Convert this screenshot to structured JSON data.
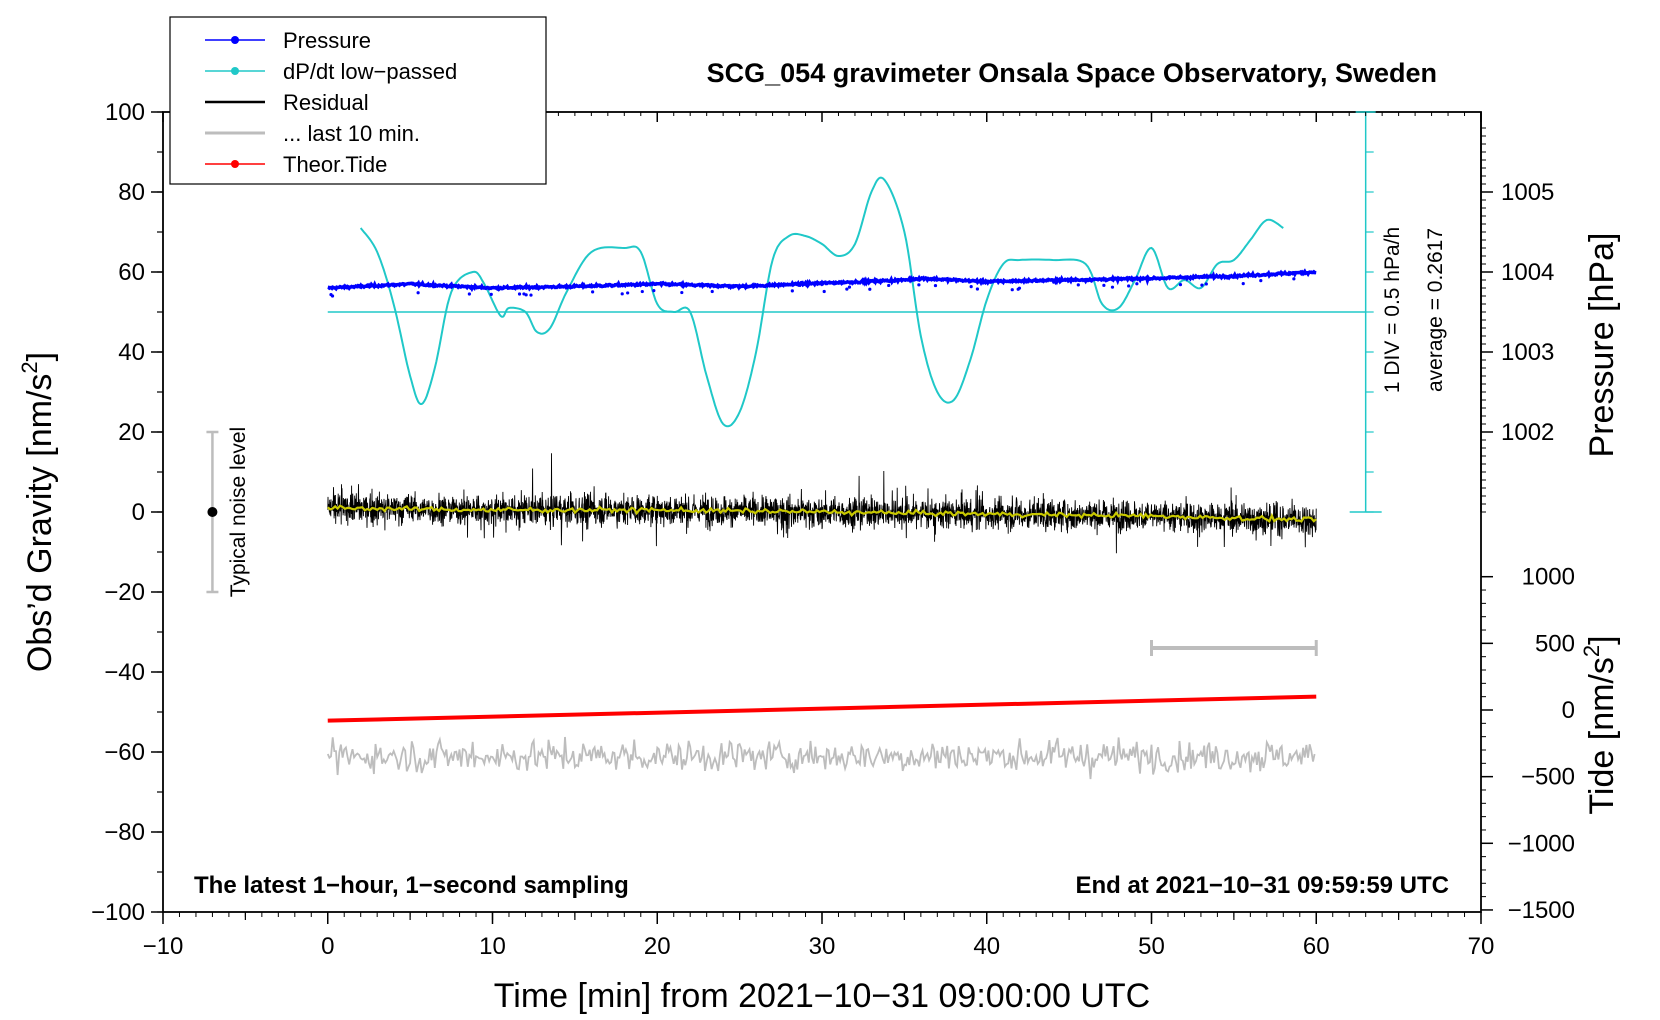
{
  "chart_data": {
    "type": "line",
    "title": "SCG_054 gravimeter Onsala Space Observatory, Sweden",
    "xlabel": "Time [min] from 2021−10−31 09:00:00 UTC",
    "ylabel_left": "Obs’d Gravity [nm/s",
    "ylabel_right_pressure": "Pressure [hPa]",
    "ylabel_right_tide": "Tide [nm/s",
    "ylabel_sup": "2",
    "ylabel_close": "]",
    "xlim": [
      -10,
      70
    ],
    "ylim": [
      -100,
      100
    ],
    "xticks": [
      "−10",
      "0",
      "10",
      "20",
      "30",
      "40",
      "50",
      "60",
      "70"
    ],
    "yticks_left": [
      "100",
      "80",
      "60",
      "40",
      "20",
      "0",
      "−20",
      "−40",
      "−60",
      "−80",
      "−100"
    ],
    "yticks_pressure": [
      "1005",
      "1004",
      "1003",
      "1002"
    ],
    "yticks_tide": [
      "1000",
      "500",
      "0",
      "−500",
      "−1000",
      "−1500"
    ],
    "legend": {
      "position": "top-left",
      "entries": [
        {
          "label": "Pressure",
          "color": "#0000ff"
        },
        {
          "label": "dP/dt low−passed",
          "color": "#20c8c8"
        },
        {
          "label": "Residual",
          "color": "#000000"
        },
        {
          "label": "... last 10 min.",
          "color": "#bdbdbd"
        },
        {
          "label": "Theor.Tide",
          "color": "#ff0000"
        }
      ]
    },
    "series": [
      {
        "name": "Pressure",
        "units": "hPa",
        "x": [
          0,
          5,
          10,
          15,
          20,
          25,
          30,
          35,
          36,
          40,
          45,
          50,
          55,
          60
        ],
        "values": [
          1003.8,
          1003.85,
          1003.8,
          1003.82,
          1003.85,
          1003.82,
          1003.86,
          1003.9,
          1003.92,
          1003.88,
          1003.9,
          1003.92,
          1003.95,
          1004.0
        ]
      },
      {
        "name": "dP/dt low−passed",
        "units": "gravity-axis",
        "x": [
          2,
          3,
          4,
          5,
          5.7,
          6.5,
          7.5,
          8.8,
          9.5,
          10.5,
          11,
          12,
          12.7,
          13.5,
          14.5,
          16,
          18,
          19,
          20,
          21,
          22,
          23,
          24,
          25,
          26,
          27,
          28,
          29,
          30,
          31,
          32,
          33,
          33.8,
          35,
          36,
          37,
          38,
          39,
          40,
          41,
          42,
          44,
          46,
          47,
          48,
          49,
          50,
          51,
          52,
          53,
          54,
          55,
          56,
          57,
          58
        ],
        "values": [
          71,
          65,
          52,
          34,
          27,
          36,
          55,
          60,
          57,
          49,
          51,
          50,
          45,
          46,
          55,
          65,
          66,
          65,
          52,
          50,
          50,
          34,
          22,
          25,
          40,
          63,
          69,
          69,
          67,
          64,
          67,
          80,
          83,
          70,
          44,
          30,
          28,
          38,
          53,
          62,
          63,
          63,
          62,
          52,
          51,
          58,
          66,
          56,
          58,
          56,
          62,
          63,
          68,
          73,
          71
        ]
      },
      {
        "name": "Residual",
        "units": "nm/s2",
        "x_range": [
          0,
          60
        ],
        "noise_amplitude": 5
      },
      {
        "name": "Residual smoothed",
        "units": "nm/s2",
        "x": [
          0,
          10,
          20,
          30,
          40,
          50,
          60
        ],
        "values": [
          1,
          0.5,
          0.5,
          0,
          -0.5,
          -1,
          -2
        ]
      },
      {
        "name": "... last 10 min.",
        "units": "nm/s2 (offset)",
        "x_range": [
          0,
          60
        ],
        "center": -61
      },
      {
        "name": "Theor.Tide",
        "units": "nm/s2",
        "x": [
          0,
          60
        ],
        "values": [
          -80,
          100
        ]
      }
    ],
    "average_line": {
      "label": "average = 0.2617",
      "value": 0.2617
    },
    "scale_label": "1 DIV = 0.5 hPa/h",
    "noise_label": "Typical noise level",
    "noise_bar": {
      "x": -7,
      "low": -20,
      "high": 20
    },
    "last10_bar": {
      "x_start": 50,
      "x_end": 60
    },
    "annotation_left": "The latest 1−hour, 1−second sampling",
    "annotation_right": "End at 2021−10−31 09:59:59 UTC"
  }
}
